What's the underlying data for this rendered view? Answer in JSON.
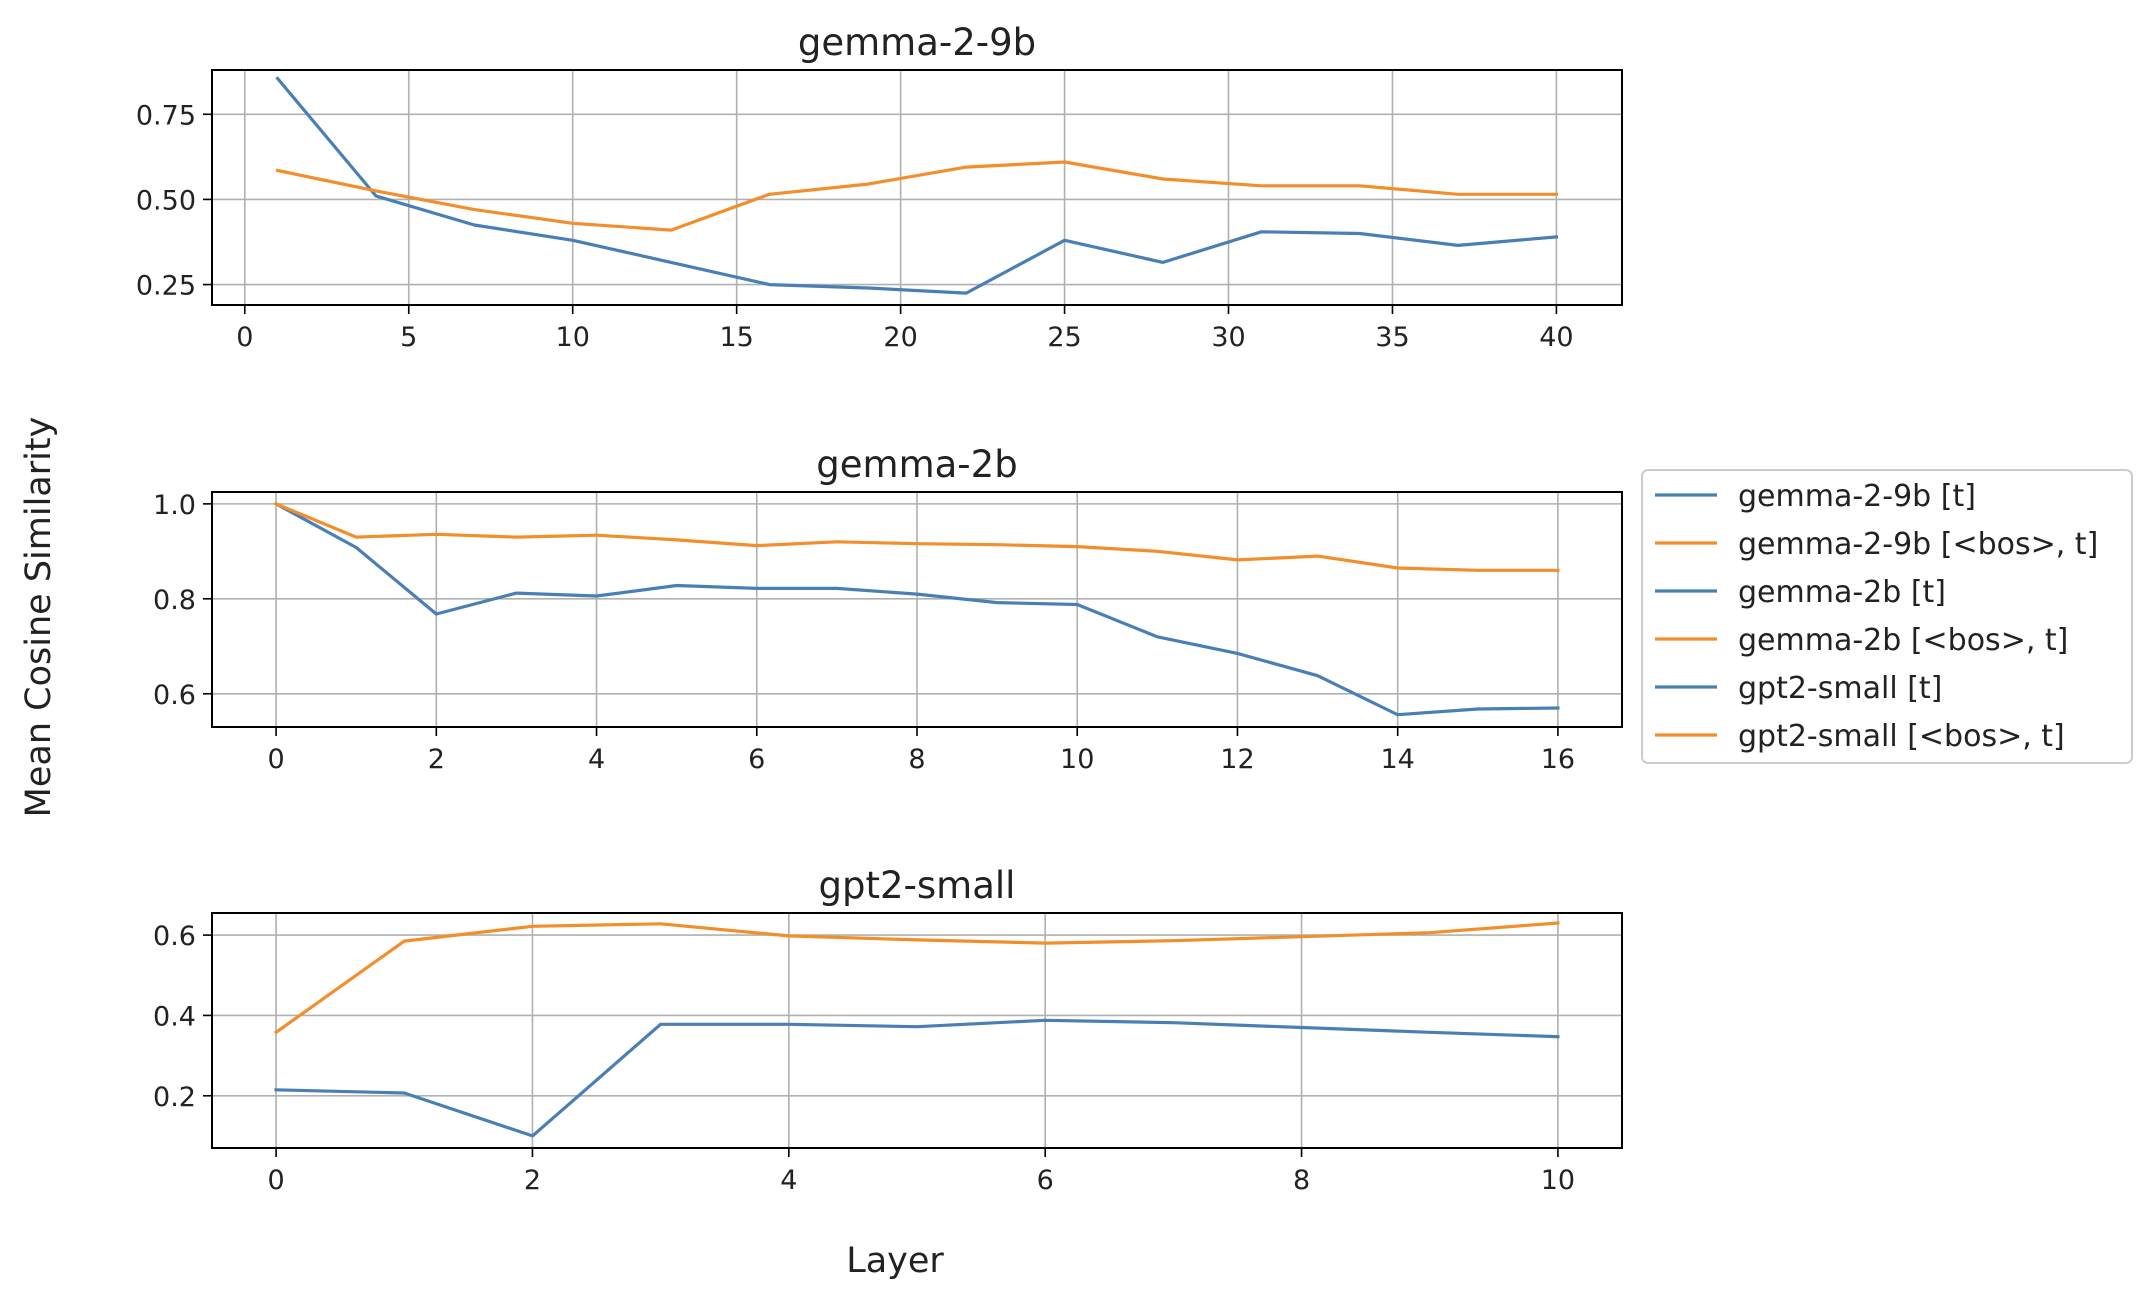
{
  "figure": {
    "ylabel": "Mean Cosine Similarity",
    "xlabel": "Layer"
  },
  "legend": {
    "placement": "right-center",
    "entries": [
      {
        "label": "gemma-2-9b [t]",
        "color": "#4a7fb5"
      },
      {
        "label": "gemma-2-9b [<bos>, t]",
        "color": "#f28e2b"
      },
      {
        "label": "gemma-2b [t]",
        "color": "#4a7fb5"
      },
      {
        "label": "gemma-2b [<bos>, t]",
        "color": "#f28e2b"
      },
      {
        "label": "gpt2-small [t]",
        "color": "#4a7fb5"
      },
      {
        "label": "gpt2-small [<bos>, t]",
        "color": "#f28e2b"
      }
    ]
  },
  "chart_data": [
    {
      "type": "line",
      "title": "gemma-2-9b",
      "grid": true,
      "xlim": [
        -1,
        42
      ],
      "ylim": [
        0.19,
        0.88
      ],
      "xticks": [
        0,
        5,
        10,
        15,
        20,
        25,
        30,
        35,
        40
      ],
      "yticks": [
        0.25,
        0.5,
        0.75
      ],
      "ytick_labels": [
        "0.25",
        "0.50",
        "0.75"
      ],
      "series": [
        {
          "name": "gemma-2-9b [t]",
          "color": "#4a7fb5",
          "x": [
            1,
            4,
            7,
            10,
            13,
            16,
            19,
            22,
            25,
            28,
            31,
            34,
            37,
            40
          ],
          "y": [
            0.855,
            0.51,
            0.425,
            0.38,
            0.315,
            0.25,
            0.24,
            0.225,
            0.38,
            0.315,
            0.405,
            0.4,
            0.365,
            0.39
          ]
        },
        {
          "name": "gemma-2-9b [<bos>, t]",
          "color": "#f28e2b",
          "x": [
            1,
            4,
            7,
            10,
            13,
            16,
            19,
            22,
            25,
            28,
            31,
            34,
            37,
            40
          ],
          "y": [
            0.585,
            0.525,
            0.47,
            0.43,
            0.41,
            0.515,
            0.545,
            0.595,
            0.61,
            0.56,
            0.54,
            0.54,
            0.515,
            0.515
          ]
        }
      ]
    },
    {
      "type": "line",
      "title": "gemma-2b",
      "grid": true,
      "xlim": [
        -0.8,
        16.8
      ],
      "ylim": [
        0.53,
        1.025
      ],
      "xticks": [
        0,
        2,
        4,
        6,
        8,
        10,
        12,
        14,
        16
      ],
      "yticks": [
        0.6,
        0.8,
        1.0
      ],
      "ytick_labels": [
        "0.6",
        "0.8",
        "1.0"
      ],
      "series": [
        {
          "name": "gemma-2b [t]",
          "color": "#4a7fb5",
          "x": [
            0,
            1,
            2,
            3,
            4,
            5,
            6,
            7,
            8,
            9,
            10,
            11,
            12,
            13,
            14,
            15,
            16
          ],
          "y": [
            1.0,
            0.908,
            0.768,
            0.812,
            0.806,
            0.828,
            0.822,
            0.822,
            0.81,
            0.792,
            0.788,
            0.72,
            0.685,
            0.638,
            0.556,
            0.568,
            0.57
          ]
        },
        {
          "name": "gemma-2b [<bos>, t]",
          "color": "#f28e2b",
          "x": [
            0,
            1,
            2,
            3,
            4,
            5,
            6,
            7,
            8,
            9,
            10,
            11,
            12,
            13,
            14,
            15,
            16
          ],
          "y": [
            1.0,
            0.93,
            0.936,
            0.93,
            0.934,
            0.924,
            0.912,
            0.92,
            0.916,
            0.914,
            0.91,
            0.9,
            0.882,
            0.89,
            0.865,
            0.86,
            0.86
          ]
        }
      ]
    },
    {
      "type": "line",
      "title": "gpt2-small",
      "grid": true,
      "xlim": [
        -0.5,
        10.5
      ],
      "ylim": [
        0.07,
        0.655
      ],
      "xticks": [
        0,
        2,
        4,
        6,
        8,
        10
      ],
      "yticks": [
        0.2,
        0.4,
        0.6
      ],
      "ytick_labels": [
        "0.2",
        "0.4",
        "0.6"
      ],
      "series": [
        {
          "name": "gpt2-small [t]",
          "color": "#4a7fb5",
          "x": [
            0,
            1,
            2,
            3,
            4,
            5,
            6,
            7,
            8,
            9,
            10
          ],
          "y": [
            0.215,
            0.207,
            0.1,
            0.378,
            0.378,
            0.372,
            0.388,
            0.382,
            0.37,
            0.358,
            0.347
          ]
        },
        {
          "name": "gpt2-small [<bos>, t]",
          "color": "#f28e2b",
          "x": [
            0,
            1,
            2,
            3,
            4,
            5,
            6,
            7,
            8,
            9,
            10
          ],
          "y": [
            0.358,
            0.585,
            0.622,
            0.628,
            0.598,
            0.588,
            0.58,
            0.586,
            0.596,
            0.606,
            0.63
          ]
        }
      ]
    }
  ]
}
